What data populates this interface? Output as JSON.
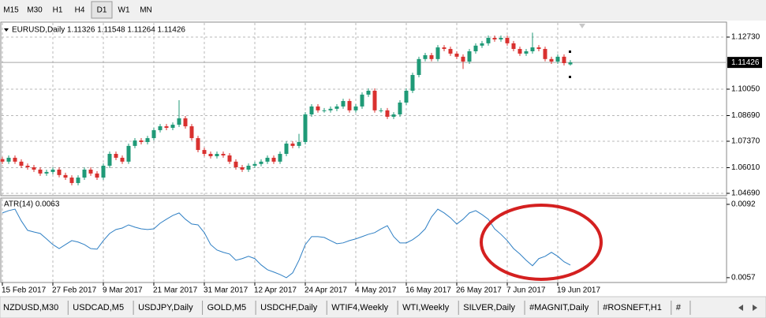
{
  "toolbar": {
    "timeframes": [
      "M15",
      "M30",
      "H1",
      "H4",
      "D1",
      "W1",
      "MN"
    ],
    "selected": "D1"
  },
  "chart_data": [
    {
      "type": "candlestick",
      "title": "EURUSD,Daily  1.11326 1.11548 1.11264 1.11426",
      "up_color": "#1f9a77",
      "down_color": "#d9312f",
      "grid": true,
      "last_price": 1.11426,
      "ylim": [
        1.04568,
        1.13502
      ],
      "yticks": [
        {
          "value": 1.1273,
          "label": "1.12730"
        },
        {
          "value": 1.1005,
          "label": "1.10050"
        },
        {
          "value": 1.0869,
          "label": "1.08690"
        },
        {
          "value": 1.0737,
          "label": "1.07370"
        },
        {
          "value": 1.0601,
          "label": "1.06010"
        },
        {
          "value": 1.0469,
          "label": "1.04690"
        }
      ],
      "categories": [
        "15 Feb 2017",
        null,
        null,
        null,
        null,
        null,
        null,
        null,
        "27 Feb 2017",
        null,
        null,
        null,
        null,
        null,
        null,
        null,
        "9 Mar 2017",
        null,
        null,
        null,
        null,
        null,
        null,
        null,
        "21 Mar 2017",
        null,
        null,
        null,
        null,
        null,
        null,
        null,
        "31 Mar 2017",
        null,
        null,
        null,
        null,
        null,
        null,
        null,
        "12 Apr 2017",
        null,
        null,
        null,
        null,
        null,
        null,
        null,
        "24 Apr 2017",
        null,
        null,
        null,
        null,
        null,
        null,
        null,
        "4 May 2017",
        null,
        null,
        null,
        null,
        null,
        null,
        null,
        "16 May 2017",
        null,
        null,
        null,
        null,
        null,
        null,
        null,
        "26 May 2017",
        null,
        null,
        null,
        null,
        null,
        null,
        null,
        "7 Jun 2017",
        null,
        null,
        null,
        null,
        null,
        null,
        null,
        "19 Jun 2017",
        null,
        null
      ],
      "open": [
        1.0645,
        1.0632,
        1.0652,
        1.0632,
        1.0611,
        1.0603,
        1.0591,
        1.0571,
        1.0579,
        1.0591,
        1.0563,
        1.055,
        1.0522,
        1.055,
        1.0591,
        1.0571,
        1.055,
        1.0611,
        1.0672,
        1.0652,
        1.0632,
        1.0713,
        1.0741,
        1.0733,
        1.0753,
        1.0794,
        1.0814,
        1.0806,
        1.0822,
        1.0855,
        1.0814,
        1.0753,
        1.0692,
        1.0672,
        1.066,
        1.0672,
        1.0664,
        1.0632,
        1.0603,
        1.0591,
        1.0611,
        1.062,
        1.0632,
        1.0652,
        1.0632,
        1.0672,
        1.0725,
        1.0713,
        1.0733,
        1.0875,
        1.0916,
        1.0896,
        1.0896,
        1.0904,
        1.0916,
        1.0944,
        1.0896,
        1.0916,
        1.0977,
        1.0997,
        1.0896,
        1.0896,
        1.0863,
        1.0875,
        1.0936,
        1.0997,
        1.1078,
        1.116,
        1.118,
        1.116,
        1.122,
        1.1212,
        1.1188,
        1.1172,
        1.1147,
        1.12,
        1.1229,
        1.1241,
        1.1269,
        1.1261,
        1.1269,
        1.1241,
        1.1212,
        1.1188,
        1.12,
        1.122,
        1.1212,
        1.116,
        1.1147,
        1.1172,
        1.11326
      ],
      "high": [
        1.0657,
        1.0664,
        1.0664,
        1.0644,
        1.0623,
        1.0615,
        1.0603,
        1.0591,
        1.0603,
        1.0603,
        1.0575,
        1.0562,
        1.0562,
        1.0603,
        1.0603,
        1.0583,
        1.0623,
        1.0684,
        1.0684,
        1.0664,
        1.0725,
        1.0753,
        1.0753,
        1.0765,
        1.0806,
        1.0826,
        1.0826,
        1.0834,
        1.0948,
        1.0867,
        1.0826,
        1.0765,
        1.0704,
        1.0684,
        1.0684,
        1.0684,
        1.0676,
        1.0644,
        1.0615,
        1.0623,
        1.0632,
        1.0644,
        1.0664,
        1.0664,
        1.0684,
        1.0737,
        1.0737,
        1.0775,
        1.0887,
        1.0928,
        1.0928,
        1.0908,
        1.0916,
        1.0928,
        1.0956,
        1.0956,
        1.0928,
        1.0989,
        1.1009,
        1.1009,
        1.0908,
        1.0908,
        1.0887,
        1.0948,
        1.1009,
        1.109,
        1.1172,
        1.1192,
        1.1192,
        1.1232,
        1.1232,
        1.1224,
        1.12,
        1.1184,
        1.1212,
        1.1241,
        1.1253,
        1.1281,
        1.1281,
        1.1281,
        1.1281,
        1.1253,
        1.1224,
        1.1212,
        1.1296,
        1.1232,
        1.1224,
        1.1172,
        1.1184,
        1.1184,
        1.11548
      ],
      "low": [
        1.062,
        1.062,
        1.062,
        1.0599,
        1.0591,
        1.0579,
        1.0559,
        1.0559,
        1.0567,
        1.0551,
        1.0538,
        1.051,
        1.051,
        1.0538,
        1.0559,
        1.0538,
        1.0538,
        1.0599,
        1.064,
        1.062,
        1.062,
        1.0701,
        1.0721,
        1.0721,
        1.0741,
        1.0782,
        1.0794,
        1.0794,
        1.081,
        1.0802,
        1.0741,
        1.068,
        1.066,
        1.0648,
        1.0648,
        1.0652,
        1.062,
        1.0591,
        1.0579,
        1.0579,
        1.0599,
        1.0608,
        1.062,
        1.062,
        1.062,
        1.066,
        1.0701,
        1.0701,
        1.0721,
        1.0863,
        1.0884,
        1.0884,
        1.0884,
        1.0892,
        1.0904,
        1.0884,
        1.0884,
        1.0904,
        1.0965,
        1.0884,
        1.0884,
        1.0851,
        1.0851,
        1.0863,
        1.0924,
        1.0985,
        1.1066,
        1.1148,
        1.1148,
        1.1148,
        1.12,
        1.1176,
        1.116,
        1.1109,
        1.1135,
        1.1188,
        1.1217,
        1.1229,
        1.1249,
        1.1249,
        1.1229,
        1.12,
        1.1176,
        1.1176,
        1.1188,
        1.12,
        1.1148,
        1.1135,
        1.1135,
        1.1127,
        1.11264
      ],
      "close": [
        1.0632,
        1.0652,
        1.0632,
        1.0611,
        1.0603,
        1.0591,
        1.0571,
        1.0579,
        1.0591,
        1.0563,
        1.055,
        1.0522,
        1.055,
        1.0591,
        1.0571,
        1.055,
        1.0611,
        1.0672,
        1.0652,
        1.0632,
        1.0713,
        1.0741,
        1.0733,
        1.0753,
        1.0794,
        1.0814,
        1.0806,
        1.0822,
        1.0855,
        1.0814,
        1.0753,
        1.0692,
        1.0672,
        1.066,
        1.0672,
        1.0664,
        1.0632,
        1.0603,
        1.0591,
        1.0611,
        1.062,
        1.0632,
        1.0652,
        1.0632,
        1.0672,
        1.0725,
        1.0713,
        1.0733,
        1.0875,
        1.0916,
        1.0896,
        1.0896,
        1.0904,
        1.0916,
        1.0944,
        1.0896,
        1.0916,
        1.0977,
        1.0997,
        1.0896,
        1.0896,
        1.0863,
        1.0875,
        1.0936,
        1.0997,
        1.1078,
        1.116,
        1.118,
        1.116,
        1.122,
        1.1212,
        1.1188,
        1.1172,
        1.1147,
        1.12,
        1.1229,
        1.1241,
        1.1269,
        1.1261,
        1.1269,
        1.1241,
        1.1212,
        1.1188,
        1.12,
        1.122,
        1.1212,
        1.116,
        1.1147,
        1.1172,
        1.1139,
        1.11426
      ]
    },
    {
      "type": "line",
      "title": "ATR(14) 0.0063",
      "color": "#2e7fc4",
      "ylim": [
        0.00547,
        0.0095
      ],
      "yticks": [
        0.0092,
        0.0057
      ],
      "values": [
        0.00879,
        0.0089,
        0.00897,
        0.00841,
        0.00796,
        0.00788,
        0.00781,
        0.00755,
        0.00728,
        0.00709,
        0.00728,
        0.00747,
        0.0074,
        0.00728,
        0.00709,
        0.00706,
        0.00747,
        0.00781,
        0.008,
        0.00807,
        0.00822,
        0.00811,
        0.00803,
        0.008,
        0.00803,
        0.0083,
        0.00849,
        0.00867,
        0.00879,
        0.00849,
        0.00826,
        0.00822,
        0.00785,
        0.00728,
        0.00702,
        0.00691,
        0.00683,
        0.00653,
        0.00661,
        0.00672,
        0.00661,
        0.00631,
        0.00608,
        0.00597,
        0.00585,
        0.0057,
        0.00593,
        0.00653,
        0.00728,
        0.00766,
        0.00766,
        0.00762,
        0.00747,
        0.00732,
        0.00736,
        0.00747,
        0.00755,
        0.00766,
        0.00777,
        0.00785,
        0.00803,
        0.00818,
        0.00766,
        0.00736,
        0.00736,
        0.00751,
        0.00773,
        0.00803,
        0.0086,
        0.00897,
        0.00879,
        0.00856,
        0.00826,
        0.00849,
        0.00879,
        0.0089,
        0.00871,
        0.00849,
        0.00803,
        0.00777,
        0.00747,
        0.00709,
        0.00683,
        0.00653,
        0.00627,
        0.00661,
        0.00672,
        0.00691,
        0.00672,
        0.00646,
        0.0063
      ]
    }
  ],
  "tabs": [
    "NZDUSD,M30",
    "USDCAD,M5",
    "USDJPY,Daily",
    "GOLD,M5",
    "USDCHF,Daily",
    "WTIF4,Weekly",
    "WTI,Weekly",
    "SILVER,Daily",
    "#MAGNIT,Daily",
    "#ROSNEFT,H1",
    "#"
  ]
}
